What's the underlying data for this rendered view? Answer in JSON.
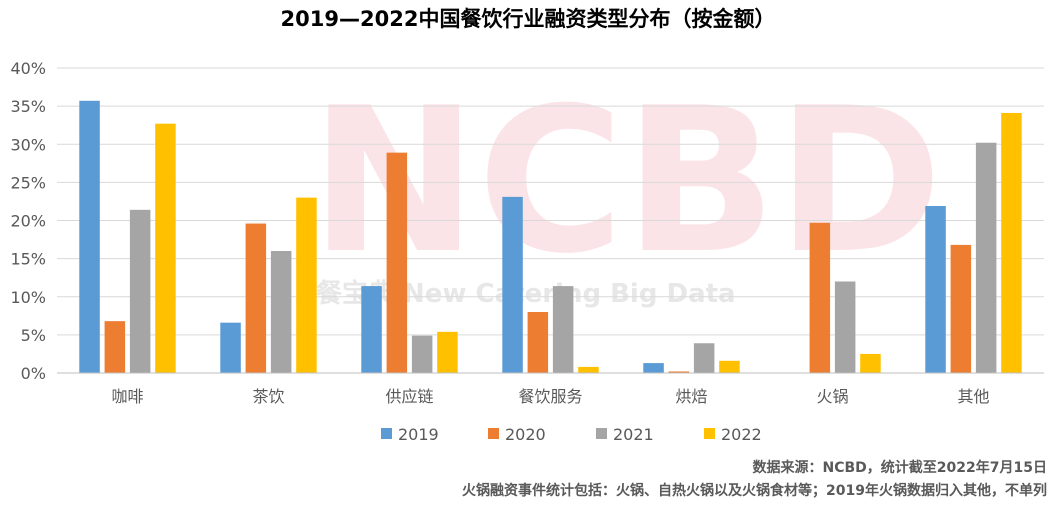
{
  "watermark": {
    "logo": "NCBD",
    "tagline": "餐宝典 New Catering Big Data"
  },
  "footnotes": [
    "数据来源：NCBD，统计截至2022年7月15日",
    "火锅融资事件统计包括：火锅、自热火锅以及火锅食材等；2019年火锅数据归入其他，不单列"
  ],
  "chart_data": {
    "type": "bar",
    "title": "2019—2022中国餐饮行业融资类型分布（按金额）",
    "xlabel": "",
    "ylabel": "",
    "ylim": [
      0,
      40
    ],
    "yticks": [
      "0%",
      "5%",
      "10%",
      "15%",
      "20%",
      "25%",
      "30%",
      "35%",
      "40%"
    ],
    "y_unit": "%",
    "grid": true,
    "legend_position": "bottom",
    "categories": [
      "咖啡",
      "茶饮",
      "供应链",
      "餐饮服务",
      "烘焙",
      "火锅",
      "其他"
    ],
    "series": [
      {
        "name": "2019",
        "color": "#5b9bd5",
        "values": [
          35.7,
          6.6,
          11.4,
          23.1,
          1.3,
          null,
          21.9
        ]
      },
      {
        "name": "2020",
        "color": "#ed7d31",
        "values": [
          6.8,
          19.6,
          28.9,
          8.0,
          0.2,
          19.7,
          16.8
        ]
      },
      {
        "name": "2021",
        "color": "#a5a5a5",
        "values": [
          21.4,
          16.0,
          4.9,
          11.4,
          3.9,
          12.0,
          30.2
        ]
      },
      {
        "name": "2022",
        "color": "#ffc000",
        "values": [
          32.7,
          23.0,
          5.4,
          0.8,
          1.6,
          2.5,
          34.1
        ]
      }
    ]
  }
}
